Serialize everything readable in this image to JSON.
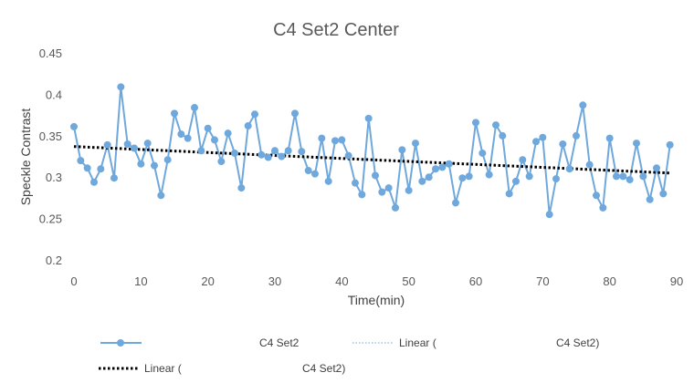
{
  "chart_data": {
    "type": "line",
    "title": "C4 Set2 Center",
    "xlabel": "Time(min)",
    "ylabel": "Speckle Contrast",
    "xlim": [
      0,
      90
    ],
    "ylim": [
      0.2,
      0.45
    ],
    "xticks": [
      "0",
      "10",
      "20",
      "30",
      "40",
      "50",
      "60",
      "70",
      "80",
      "90"
    ],
    "yticks": [
      "0.2",
      "0.25",
      "0.3",
      "0.35",
      "0.4",
      "0.45"
    ],
    "grid": false,
    "legend_position": "bottom",
    "series": [
      {
        "name": "C4 Set2",
        "color": "#6fa8dc",
        "marker": "circle",
        "x": [
          0,
          1,
          2,
          3,
          4,
          5,
          6,
          7,
          8,
          9,
          10,
          11,
          12,
          13,
          14,
          15,
          16,
          17,
          18,
          19,
          20,
          21,
          22,
          23,
          24,
          25,
          26,
          27,
          28,
          29,
          30,
          31,
          32,
          33,
          34,
          35,
          36,
          37,
          38,
          39,
          40,
          41,
          42,
          43,
          44,
          45,
          46,
          47,
          48,
          49,
          50,
          51,
          52,
          53,
          54,
          55,
          56,
          57,
          58,
          59,
          60,
          61,
          62,
          63,
          64,
          65,
          66,
          67,
          68,
          69,
          70,
          71,
          72,
          73,
          74,
          75,
          76,
          77,
          78,
          79,
          80,
          81,
          82,
          83,
          84,
          85,
          86,
          87,
          88,
          89
        ],
        "y": [
          0.362,
          0.321,
          0.312,
          0.295,
          0.311,
          0.34,
          0.3,
          0.41,
          0.341,
          0.336,
          0.317,
          0.342,
          0.315,
          0.279,
          0.322,
          0.378,
          0.353,
          0.348,
          0.385,
          0.333,
          0.36,
          0.346,
          0.32,
          0.354,
          0.33,
          0.288,
          0.363,
          0.377,
          0.328,
          0.325,
          0.333,
          0.326,
          0.333,
          0.378,
          0.332,
          0.309,
          0.305,
          0.348,
          0.296,
          0.345,
          0.346,
          0.327,
          0.294,
          0.28,
          0.372,
          0.303,
          0.283,
          0.288,
          0.264,
          0.334,
          0.285,
          0.342,
          0.296,
          0.301,
          0.311,
          0.313,
          0.317,
          0.27,
          0.3,
          0.302,
          0.367,
          0.33,
          0.304,
          0.364,
          0.351,
          0.281,
          0.296,
          0.322,
          0.302,
          0.344,
          0.349,
          0.256,
          0.299,
          0.341,
          0.311,
          0.351,
          0.388,
          0.316,
          0.279,
          0.264,
          0.348,
          0.302,
          0.302,
          0.298,
          0.342,
          0.302,
          0.274,
          0.312,
          0.281,
          0.34
        ]
      },
      {
        "name": "Linear (                                C4 Set2)",
        "color": "#000000",
        "style": "dotted",
        "x": [
          0,
          89
        ],
        "y": [
          0.338,
          0.306
        ]
      }
    ]
  },
  "legend": [
    {
      "label": "C4 Set2",
      "kind": "marker-line",
      "color": "#6fa8dc"
    },
    {
      "label": "Linear (",
      "label_tail": "C4 Set2)",
      "kind": "dotted-light",
      "color": "#9dc3e6"
    },
    {
      "label": "Linear (",
      "label_tail": "C4 Set2)",
      "kind": "dotted-heavy",
      "color": "#000000"
    }
  ]
}
